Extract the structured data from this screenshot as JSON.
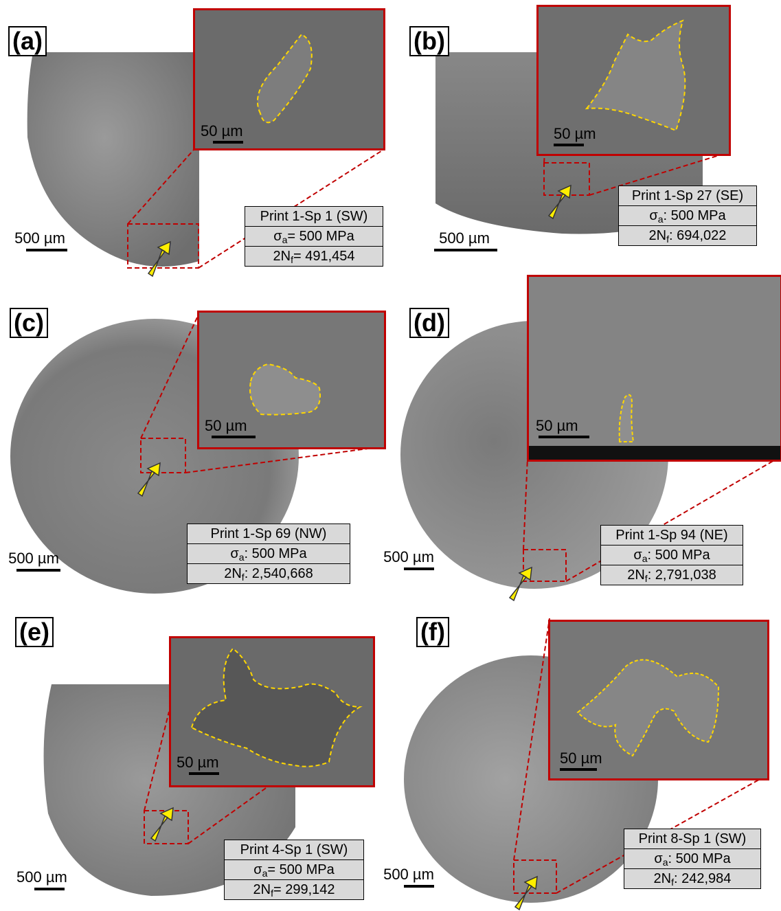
{
  "panels": [
    {
      "id": "a",
      "label": "(a)",
      "scale": "500 µm",
      "inset_scale": "50 µm",
      "specimen": "Print 1-Sp 1 (SW)",
      "stress_prefix": "σ",
      "stress_sub": "a",
      "stress_value": "= 500 MPa",
      "cycles_prefix": "2N",
      "cycles_sub": "f",
      "cycles_value": "= 491,454"
    },
    {
      "id": "b",
      "label": "(b)",
      "scale": "500 µm",
      "inset_scale": "50 µm",
      "specimen": "Print 1-Sp 27 (SE)",
      "stress_prefix": "σ",
      "stress_sub": "a",
      "stress_value": ": 500 MPa",
      "cycles_prefix": "2N",
      "cycles_sub": "f",
      "cycles_value": ": 694,022"
    },
    {
      "id": "c",
      "label": "(c)",
      "scale": "500 µm",
      "inset_scale": "50 µm",
      "specimen": "Print 1-Sp 69 (NW)",
      "stress_prefix": "σ",
      "stress_sub": "a",
      "stress_value": ": 500 MPa",
      "cycles_prefix": "2N",
      "cycles_sub": "f",
      "cycles_value": ": 2,540,668"
    },
    {
      "id": "d",
      "label": "(d)",
      "scale": "500 µm",
      "inset_scale": "50 µm",
      "specimen": "Print 1-Sp 94 (NE)",
      "stress_prefix": "σ",
      "stress_sub": "a",
      "stress_value": ": 500 MPa",
      "cycles_prefix": "2N",
      "cycles_sub": "f",
      "cycles_value": ": 2,791,038"
    },
    {
      "id": "e",
      "label": "(e)",
      "scale": "500 µm",
      "inset_scale": "50 µm",
      "specimen": "Print 4-Sp 1 (SW)",
      "stress_prefix": "σ",
      "stress_sub": "a",
      "stress_value": "= 500 MPa",
      "cycles_prefix": "2N",
      "cycles_sub": "f",
      "cycles_value": "= 299,142"
    },
    {
      "id": "f",
      "label": "(f)",
      "scale": "500 µm",
      "inset_scale": "50 µm",
      "specimen": "Print 8-Sp 1 (SW)",
      "stress_prefix": "σ",
      "stress_sub": "a",
      "stress_value": ": 500 MPa",
      "cycles_prefix": "2N",
      "cycles_sub": "f",
      "cycles_value": ": 242,984"
    }
  ],
  "colors": {
    "frame": "#c00000",
    "outline": "#ffd700",
    "arrow": "#ffee00",
    "fracture": "#8a8a8a",
    "info_bg": "#d9d9d9"
  }
}
